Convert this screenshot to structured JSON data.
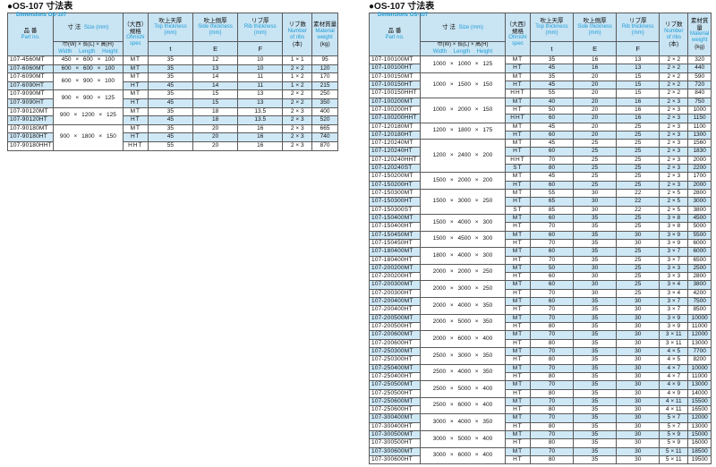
{
  "colors": {
    "accent_blue": "#1e9cd7",
    "stripe_blue": "#cfe8f6",
    "header_blue": "#c9e4f3",
    "border": "#5a5a5a"
  },
  "tables": [
    {
      "title_ja": "●OS-107 寸法表",
      "title_en": "Dimensions OS-107",
      "header": {
        "part_no_ja": "品 番",
        "part_no_en": "Part no.",
        "size_ja": "寸 法",
        "size_en": "Size (mm)",
        "size_sub_ja": "巾(W) × 長(L) × 高(H)",
        "size_sub_en": "Width Length Height",
        "spec_ja1": "（大西）",
        "spec_ja2": "規格",
        "spec_en1": "Ohnishi",
        "spec_en2": "spec",
        "top_ja": "吹上天厚",
        "top_en": "Top thickness",
        "top_unit": "(mm)",
        "top_sym": "t",
        "side_ja": "吹上側厚",
        "side_en": "Side thickness",
        "side_unit": "(mm)",
        "side_sym": "E",
        "rib_ja": "リブ厚",
        "rib_en": "Rib thickness",
        "rib_unit": "(mm)",
        "rib_sym": "F",
        "ribs_ja": "リブ数",
        "ribs_en1": "Number",
        "ribs_en2": "of ribs",
        "ribs_unit": "(本)",
        "weight_ja": "素材質量",
        "weight_en1": "Material",
        "weight_en2": "weight",
        "weight_unit": "(kg)"
      },
      "rows": [
        {
          "p": "107-4560MT",
          "sz": "450 × 600 × 100",
          "span": 1,
          "s": "MT",
          "t": "35",
          "e": "12",
          "f": "10",
          "n": "1 × 1",
          "w": "95"
        },
        {
          "p": "107-6060MT",
          "sz": "600 × 600 × 100",
          "span": 1,
          "s": "MT",
          "t": "35",
          "e": "13",
          "f": "10",
          "n": "2 × 2",
          "w": "120"
        },
        {
          "p": "107-6090MT",
          "sz": "600 × 900 × 100",
          "span": 2,
          "s": "MT",
          "t": "35",
          "e": "14",
          "f": "11",
          "n": "1 × 2",
          "w": "170"
        },
        {
          "p": "107-6090HT",
          "s": "HT",
          "t": "45",
          "e": "14",
          "f": "11",
          "n": "1 × 2",
          "w": "215"
        },
        {
          "p": "107-9090MT",
          "sz": "900 × 900 × 125",
          "span": 2,
          "s": "MT",
          "t": "35",
          "e": "15",
          "f": "13",
          "n": "2 × 2",
          "w": "250"
        },
        {
          "p": "107-9090HT",
          "s": "HT",
          "t": "45",
          "e": "15",
          "f": "13",
          "n": "2 × 2",
          "w": "350"
        },
        {
          "p": "107-90120MT",
          "sz": "900 × 1200 × 125",
          "span": 2,
          "s": "MT",
          "t": "35",
          "e": "18",
          "f": "13.5",
          "n": "2 × 3",
          "w": "400"
        },
        {
          "p": "107-90120HT",
          "s": "HT",
          "t": "45",
          "e": "18",
          "f": "13.5",
          "n": "2 × 3",
          "w": "520"
        },
        {
          "p": "107-90180MT",
          "sz": "900 × 1800 × 150",
          "span": 3,
          "s": "MT",
          "t": "35",
          "e": "20",
          "f": "16",
          "n": "2 × 3",
          "w": "665"
        },
        {
          "p": "107-90180HT",
          "s": "HT",
          "t": "45",
          "e": "20",
          "f": "16",
          "n": "2 × 3",
          "w": "740"
        },
        {
          "p": "107-90180HHT",
          "s": "HHT",
          "t": "55",
          "e": "20",
          "f": "16",
          "n": "2 × 3",
          "w": "870"
        }
      ]
    },
    {
      "title_ja": "●OS-107 寸法表",
      "title_en": "Dimensions OS-107",
      "header": {
        "part_no_ja": "品 番",
        "part_no_en": "Part no.",
        "size_ja": "寸 法",
        "size_en": "Size (mm)",
        "size_sub_ja": "巾(W) × 長(L) × 高(H)",
        "size_sub_en": "Width Length Height",
        "spec_ja1": "（大西）",
        "spec_ja2": "規格",
        "spec_en1": "Ohnishi",
        "spec_en2": "spec",
        "top_ja": "吹上天厚",
        "top_en": "Top thickness",
        "top_unit": "(mm)",
        "top_sym": "t",
        "side_ja": "吹上側厚",
        "side_en": "Side thickness",
        "side_unit": "(mm)",
        "side_sym": "E",
        "rib_ja": "リブ厚",
        "rib_en": "Rib thickness",
        "rib_unit": "(mm)",
        "rib_sym": "F",
        "ribs_ja": "リブ数",
        "ribs_en1": "Number",
        "ribs_en2": "of ribs",
        "ribs_unit": "(本)",
        "weight_ja": "素材質量",
        "weight_en1": "Material",
        "weight_en2": "weight",
        "weight_unit": "(kg)"
      },
      "rows": [
        {
          "p": "107-100100MT",
          "sz": "1000 × 1000 × 125",
          "span": 2,
          "s": "MT",
          "t": "35",
          "e": "16",
          "f": "13",
          "n": "2 × 2",
          "w": "320"
        },
        {
          "p": "107-100100HT",
          "s": "HT",
          "t": "45",
          "e": "16",
          "f": "13",
          "n": "2 × 2",
          "w": "440"
        },
        {
          "p": "107-100150MT",
          "sz": "1000 × 1500 × 150",
          "span": 3,
          "s": "MT",
          "t": "35",
          "e": "20",
          "f": "15",
          "n": "2 × 2",
          "w": "590"
        },
        {
          "p": "107-100150HT",
          "s": "HT",
          "t": "45",
          "e": "20",
          "f": "15",
          "n": "2 × 2",
          "w": "720"
        },
        {
          "p": "107-100150HHT",
          "s": "HHT",
          "t": "55",
          "e": "20",
          "f": "15",
          "n": "2 × 2",
          "w": "840"
        },
        {
          "p": "107-100200MT",
          "sz": "1000 × 2000 × 150",
          "span": 3,
          "s": "MT",
          "t": "40",
          "e": "20",
          "f": "16",
          "n": "2 × 3",
          "w": "750"
        },
        {
          "p": "107-100200HT",
          "s": "HT",
          "t": "50",
          "e": "20",
          "f": "16",
          "n": "2 × 3",
          "w": "1000"
        },
        {
          "p": "107-100200HHT",
          "s": "HHT",
          "t": "60",
          "e": "20",
          "f": "16",
          "n": "2 × 3",
          "w": "1150"
        },
        {
          "p": "107-120180MT",
          "sz": "1200 × 1800 × 175",
          "span": 2,
          "s": "MT",
          "t": "45",
          "e": "20",
          "f": "25",
          "n": "2 × 3",
          "w": "1100"
        },
        {
          "p": "107-120180HT",
          "s": "HT",
          "t": "60",
          "e": "20",
          "f": "25",
          "n": "2 × 3",
          "w": "1300"
        },
        {
          "p": "107-120240MT",
          "sz": "1200 × 2400 × 200",
          "span": 4,
          "s": "MT",
          "t": "45",
          "e": "25",
          "f": "25",
          "n": "2 × 3",
          "w": "1560"
        },
        {
          "p": "107-120240HT",
          "s": "HT",
          "t": "60",
          "e": "25",
          "f": "25",
          "n": "2 × 3",
          "w": "1830"
        },
        {
          "p": "107-120240HHT",
          "s": "HHT",
          "t": "70",
          "e": "25",
          "f": "25",
          "n": "2 × 3",
          "w": "2000"
        },
        {
          "p": "107-120240ST",
          "s": "ST",
          "t": "80",
          "e": "25",
          "f": "25",
          "n": "2 × 3",
          "w": "2200"
        },
        {
          "p": "107-150200MT",
          "sz": "1500 × 2000 × 200",
          "span": 2,
          "s": "MT",
          "t": "45",
          "e": "25",
          "f": "25",
          "n": "2 × 3",
          "w": "1700"
        },
        {
          "p": "107-150200HT",
          "s": "HT",
          "t": "60",
          "e": "25",
          "f": "25",
          "n": "2 × 3",
          "w": "2000"
        },
        {
          "p": "107-150300MT",
          "sz": "1500 × 3000 × 250",
          "span": 3,
          "s": "MT",
          "t": "55",
          "e": "30",
          "f": "22",
          "n": "2 × 5",
          "w": "2800"
        },
        {
          "p": "107-150300HT",
          "s": "HT",
          "t": "65",
          "e": "30",
          "f": "22",
          "n": "2 × 5",
          "w": "3000"
        },
        {
          "p": "107-150300ST",
          "s": "ST",
          "t": "85",
          "e": "30",
          "f": "22",
          "n": "2 × 5",
          "w": "3800"
        },
        {
          "p": "107-150400MT",
          "sz": "1500 × 4000 × 300",
          "span": 2,
          "s": "MT",
          "t": "60",
          "e": "35",
          "f": "25",
          "n": "3 × 8",
          "w": "4500"
        },
        {
          "p": "107-150400HT",
          "s": "HT",
          "t": "70",
          "e": "35",
          "f": "25",
          "n": "3 × 8",
          "w": "5000"
        },
        {
          "p": "107-150450MT",
          "sz": "1500 × 4500 × 300",
          "span": 2,
          "s": "MT",
          "t": "60",
          "e": "35",
          "f": "30",
          "n": "3 × 9",
          "w": "5500"
        },
        {
          "p": "107-150450HT",
          "s": "HT",
          "t": "70",
          "e": "35",
          "f": "30",
          "n": "3 × 9",
          "w": "6000"
        },
        {
          "p": "107-180400MT",
          "sz": "1800 × 4000 × 300",
          "span": 2,
          "s": "MT",
          "t": "60",
          "e": "35",
          "f": "25",
          "n": "3 × 7",
          "w": "6000"
        },
        {
          "p": "107-180400HT",
          "s": "HT",
          "t": "70",
          "e": "35",
          "f": "25",
          "n": "3 × 7",
          "w": "6500"
        },
        {
          "p": "107-200200MT",
          "sz": "2000 × 2000 × 250",
          "span": 2,
          "s": "MT",
          "t": "50",
          "e": "30",
          "f": "25",
          "n": "3 × 3",
          "w": "2500"
        },
        {
          "p": "107-200200HT",
          "s": "HT",
          "t": "60",
          "e": "30",
          "f": "25",
          "n": "3 × 3",
          "w": "2800"
        },
        {
          "p": "107-200300MT",
          "sz": "2000 × 3000 × 250",
          "span": 2,
          "s": "MT",
          "t": "60",
          "e": "30",
          "f": "25",
          "n": "3 × 4",
          "w": "3800"
        },
        {
          "p": "107-200300HT",
          "s": "HT",
          "t": "70",
          "e": "30",
          "f": "25",
          "n": "3 × 4",
          "w": "4200"
        },
        {
          "p": "107-200400MT",
          "sz": "2000 × 4000 × 350",
          "span": 2,
          "s": "MT",
          "t": "60",
          "e": "35",
          "f": "30",
          "n": "3 × 7",
          "w": "7500"
        },
        {
          "p": "107-200400HT",
          "s": "HT",
          "t": "70",
          "e": "35",
          "f": "30",
          "n": "3 × 7",
          "w": "8500"
        },
        {
          "p": "107-200500MT",
          "sz": "2000 × 5000 × 350",
          "span": 2,
          "s": "MT",
          "t": "70",
          "e": "35",
          "f": "30",
          "n": "3 × 9",
          "w": "10000"
        },
        {
          "p": "107-200500HT",
          "s": "HT",
          "t": "80",
          "e": "35",
          "f": "30",
          "n": "3 × 9",
          "w": "11000"
        },
        {
          "p": "107-200600MT",
          "sz": "2000 × 6000 × 400",
          "span": 2,
          "s": "MT",
          "t": "70",
          "e": "35",
          "f": "30",
          "n": "3 × 11",
          "w": "12000"
        },
        {
          "p": "107-200600HT",
          "s": "HT",
          "t": "80",
          "e": "35",
          "f": "30",
          "n": "3 × 11",
          "w": "13000"
        },
        {
          "p": "107-250300MT",
          "sz": "2500 × 3000 × 350",
          "span": 2,
          "s": "MT",
          "t": "70",
          "e": "35",
          "f": "30",
          "n": "4 × 5",
          "w": "7700"
        },
        {
          "p": "107-250300HT",
          "s": "HT",
          "t": "80",
          "e": "35",
          "f": "30",
          "n": "4 × 5",
          "w": "8200"
        },
        {
          "p": "107-250400MT",
          "sz": "2500 × 4000 × 350",
          "span": 2,
          "s": "MT",
          "t": "70",
          "e": "35",
          "f": "30",
          "n": "4 × 7",
          "w": "10000"
        },
        {
          "p": "107-250400HT",
          "s": "HT",
          "t": "80",
          "e": "35",
          "f": "30",
          "n": "4 × 7",
          "w": "11000"
        },
        {
          "p": "107-250500MT",
          "sz": "2500 × 5000 × 400",
          "span": 2,
          "s": "MT",
          "t": "70",
          "e": "35",
          "f": "30",
          "n": "4 × 9",
          "w": "13000"
        },
        {
          "p": "107-250500HT",
          "s": "HT",
          "t": "80",
          "e": "35",
          "f": "30",
          "n": "4 × 9",
          "w": "14000"
        },
        {
          "p": "107-250600MT",
          "sz": "2500 × 6000 × 400",
          "span": 2,
          "s": "MT",
          "t": "70",
          "e": "35",
          "f": "30",
          "n": "4 × 11",
          "w": "15500"
        },
        {
          "p": "107-250600HT",
          "s": "HT",
          "t": "80",
          "e": "35",
          "f": "30",
          "n": "4 × 11",
          "w": "16500"
        },
        {
          "p": "107-300400MT",
          "sz": "3000 × 4000 × 350",
          "span": 2,
          "s": "MT",
          "t": "70",
          "e": "35",
          "f": "30",
          "n": "5 × 7",
          "w": "12000"
        },
        {
          "p": "107-300400HT",
          "s": "HT",
          "t": "80",
          "e": "35",
          "f": "30",
          "n": "5 × 7",
          "w": "13000"
        },
        {
          "p": "107-300500MT",
          "sz": "3000 × 5000 × 400",
          "span": 2,
          "s": "MT",
          "t": "70",
          "e": "35",
          "f": "30",
          "n": "5 × 9",
          "w": "15000"
        },
        {
          "p": "107-300500HT",
          "s": "HT",
          "t": "80",
          "e": "35",
          "f": "30",
          "n": "5 × 9",
          "w": "16000"
        },
        {
          "p": "107-300600MT",
          "sz": "3000 × 6000 × 400",
          "span": 2,
          "s": "MT",
          "t": "70",
          "e": "35",
          "f": "30",
          "n": "5 × 11",
          "w": "18500"
        },
        {
          "p": "107-300600HT",
          "s": "HT",
          "t": "80",
          "e": "35",
          "f": "30",
          "n": "5 × 11",
          "w": "19500"
        }
      ]
    }
  ]
}
